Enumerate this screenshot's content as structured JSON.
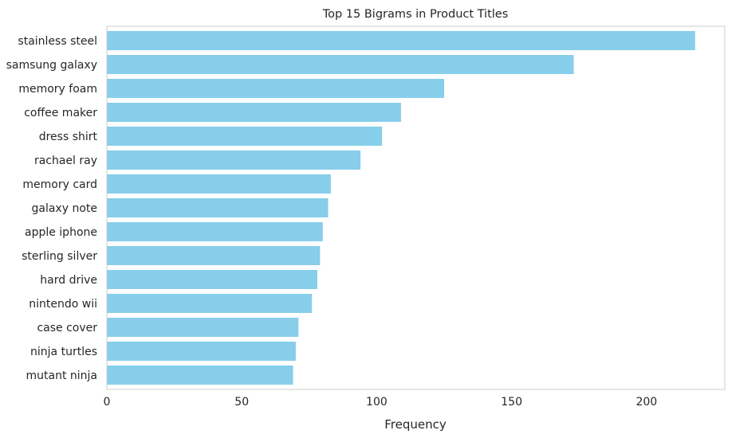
{
  "chart_data": {
    "type": "bar",
    "orientation": "horizontal",
    "title": "Top 15 Bigrams in Product Titles",
    "xlabel": "Frequency",
    "ylabel": "",
    "categories": [
      "stainless steel",
      "samsung galaxy",
      "memory foam",
      "coffee maker",
      "dress shirt",
      "rachael ray",
      "memory card",
      "galaxy note",
      "apple iphone",
      "sterling silver",
      "hard drive",
      "nintendo wii",
      "case cover",
      "ninja turtles",
      "mutant ninja"
    ],
    "values": [
      218,
      173,
      125,
      109,
      102,
      94,
      83,
      82,
      80,
      79,
      78,
      76,
      71,
      70,
      69
    ],
    "xlim": [
      0,
      229
    ],
    "xticks": [
      "0",
      "50",
      "100",
      "150",
      "200"
    ],
    "grid": false,
    "bar_color": "#87ceeb",
    "axis_color": "#cccccc"
  }
}
